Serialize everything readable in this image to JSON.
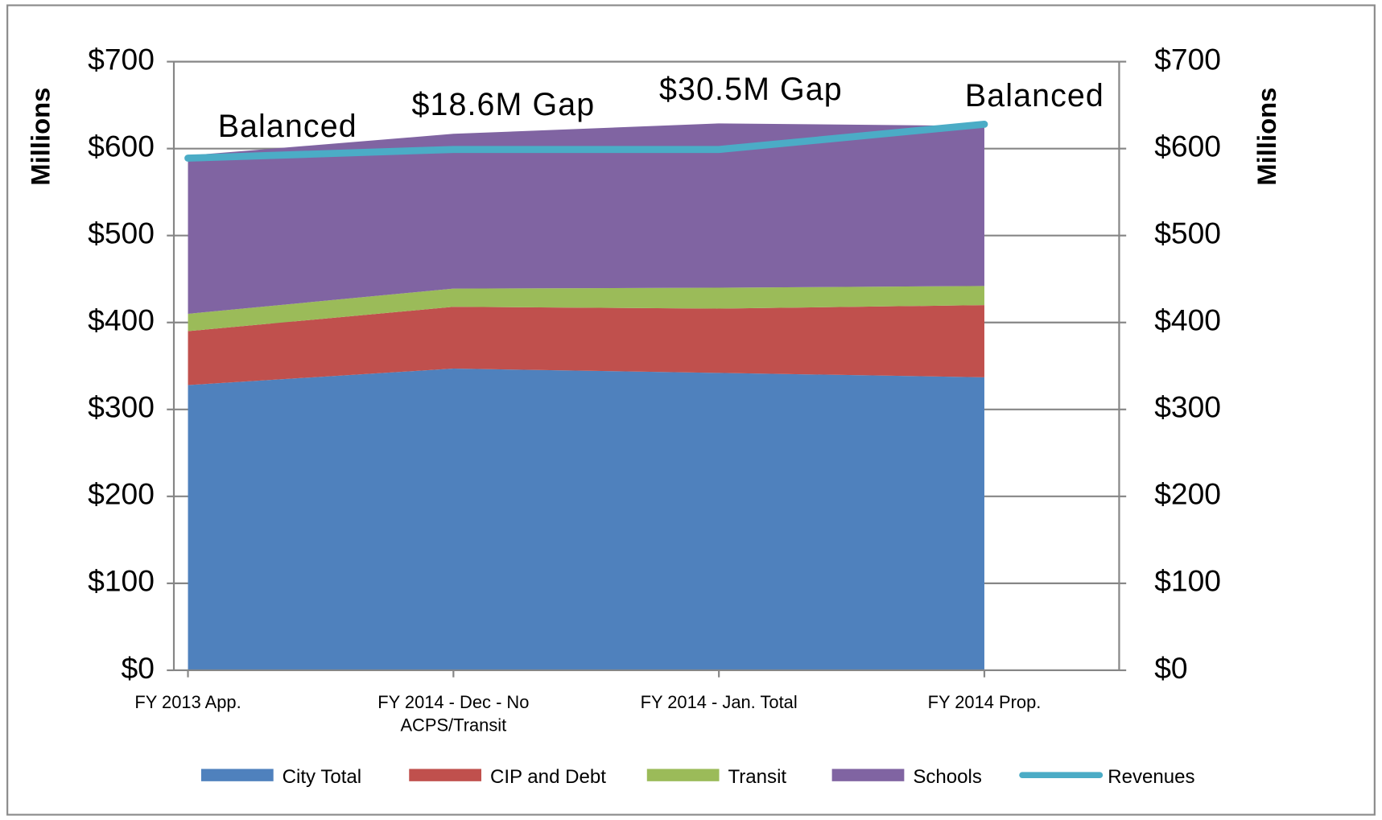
{
  "chart_data": {
    "type": "stacked-area",
    "categories": [
      "FY 2013 App.",
      "FY 2014 - Dec - No ACPS/Transit",
      "FY 2014 - Jan. Total",
      "FY 2014 Prop."
    ],
    "series": [
      {
        "name": "City Total",
        "color": "#4f81bd",
        "values": [
          328,
          347,
          342,
          337
        ]
      },
      {
        "name": "CIP and Debt",
        "color": "#c0504d",
        "values": [
          62,
          71,
          74,
          83
        ]
      },
      {
        "name": "Transit",
        "color": "#9bbb59",
        "values": [
          20,
          21,
          24,
          22
        ]
      },
      {
        "name": "Schools",
        "color": "#8064a2",
        "values": [
          182,
          178,
          189,
          184
        ]
      },
      {
        "name": "Revenues",
        "color": "#4bacc6",
        "type": "line",
        "values": [
          589,
          599,
          599,
          628
        ]
      }
    ],
    "annotations": [
      "Balanced",
      "$18.6M Gap",
      "$30.5M Gap",
      "Balanced"
    ],
    "ylabel": "Millions",
    "y2label": "Millions",
    "ylim": [
      0,
      700
    ],
    "yticks": [
      {
        "value": 0,
        "label": "$0"
      },
      {
        "value": 100,
        "label": "$100"
      },
      {
        "value": 200,
        "label": "$200"
      },
      {
        "value": 300,
        "label": "$300"
      },
      {
        "value": 400,
        "label": "$400"
      },
      {
        "value": 500,
        "label": "$500"
      },
      {
        "value": 600,
        "label": "$600"
      },
      {
        "value": 700,
        "label": "$700"
      }
    ],
    "y2lim": [
      0,
      700
    ],
    "y2ticks": [
      {
        "value": 0,
        "label": "$0"
      },
      {
        "value": 100,
        "label": "$100"
      },
      {
        "value": 200,
        "label": "$200"
      },
      {
        "value": 300,
        "label": "$300"
      },
      {
        "value": 400,
        "label": "$400"
      },
      {
        "value": 500,
        "label": "$500"
      },
      {
        "value": 600,
        "label": "$600"
      },
      {
        "value": 700,
        "label": "$700"
      }
    ],
    "grid": true,
    "legend": "bottom"
  }
}
